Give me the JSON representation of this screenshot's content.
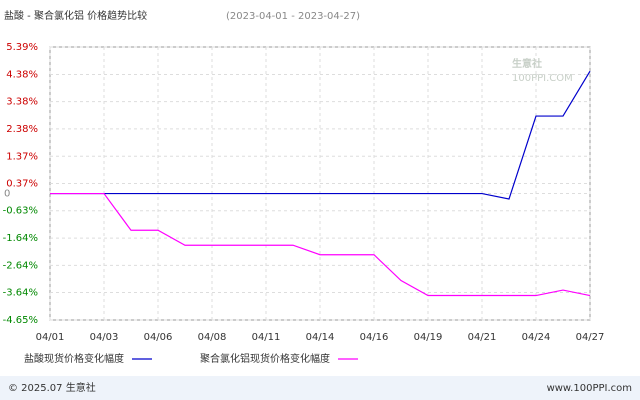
{
  "chart_data": {
    "type": "line",
    "title": "盐酸 - 聚合氯化铝 价格趋势比较",
    "subtitle": "(2023-04-01 - 2023-04-27)",
    "watermark": {
      "name": "生意社",
      "site": "100PPI.COM"
    },
    "categories": [
      "04/01",
      null,
      "04/03",
      null,
      "04/06",
      null,
      "04/08",
      null,
      "04/11",
      null,
      "04/14",
      null,
      "04/16",
      null,
      "04/19",
      null,
      "04/21",
      null,
      "04/24",
      null,
      "04/27"
    ],
    "series": [
      {
        "name": "盐酸现货价格变化幅度",
        "color": "#0000cc",
        "values": [
          0,
          0,
          0,
          0,
          0,
          0,
          0,
          0,
          0,
          0,
          0,
          0,
          0,
          0,
          0,
          0,
          0,
          -0.2,
          2.85,
          2.85,
          4.5
        ]
      },
      {
        "name": "聚合氯化铝现货价格变化幅度",
        "color": "#ff00ff",
        "values": [
          0,
          0,
          0,
          -1.35,
          -1.35,
          -1.9,
          -1.9,
          -1.9,
          -1.9,
          -1.9,
          -2.25,
          -2.25,
          -2.25,
          -3.2,
          -3.75,
          -3.75,
          -3.75,
          -3.75,
          -3.75,
          -3.55,
          -3.75
        ]
      }
    ],
    "ylim": [
      -4.65,
      5.39
    ],
    "yticks": [
      {
        "value": 5.39,
        "label": "5.39%"
      },
      {
        "value": 4.38,
        "label": "4.38%"
      },
      {
        "value": 3.38,
        "label": "3.38%"
      },
      {
        "value": 2.38,
        "label": "2.38%"
      },
      {
        "value": 1.37,
        "label": "1.37%"
      },
      {
        "value": 0.37,
        "label": "0.37%"
      },
      0,
      {
        "value": -0.63,
        "label": "-0.63%"
      },
      {
        "value": -1.64,
        "label": "-1.64%"
      },
      {
        "value": -2.64,
        "label": "-2.64%"
      },
      {
        "value": -3.64,
        "label": "-3.64%"
      },
      {
        "value": -4.65,
        "label": "-4.65%"
      }
    ],
    "grid": true,
    "footer": {
      "left": "© 2025.07 生意社",
      "right": "www.100PPI.com"
    }
  }
}
